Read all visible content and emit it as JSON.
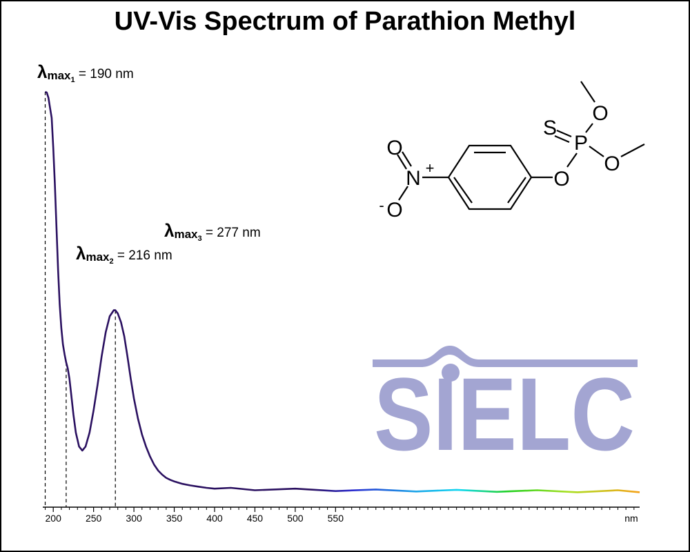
{
  "chart_data": {
    "type": "line",
    "title": "UV-Vis Spectrum of Parathion Methyl",
    "x_unit": "nm",
    "xlim": [
      187,
      927
    ],
    "ylim": [
      0,
      1.0
    ],
    "x_ticks": [
      200,
      250,
      300,
      350,
      400,
      450,
      500,
      550
    ],
    "grid": false,
    "series": [
      {
        "x": [
          190,
          192,
          194,
          196,
          198,
          200,
          202,
          204,
          206,
          208,
          210,
          212,
          214,
          216,
          218,
          220,
          222,
          225,
          228,
          232,
          236,
          240,
          245,
          250,
          255,
          260,
          265,
          270,
          275,
          277,
          280,
          284,
          288,
          292,
          296,
          300,
          305,
          310,
          315,
          320,
          325,
          330,
          335,
          340,
          345,
          350,
          360,
          370,
          380,
          390,
          400,
          420,
          450,
          500,
          550,
          600,
          650,
          700,
          750,
          800,
          850,
          900,
          927
        ],
        "y": [
          1.0,
          0.998,
          0.985,
          0.96,
          0.935,
          0.86,
          0.77,
          0.66,
          0.555,
          0.47,
          0.41,
          0.37,
          0.345,
          0.325,
          0.31,
          0.285,
          0.25,
          0.195,
          0.15,
          0.115,
          0.105,
          0.115,
          0.15,
          0.205,
          0.27,
          0.34,
          0.4,
          0.44,
          0.455,
          0.455,
          0.447,
          0.425,
          0.39,
          0.34,
          0.285,
          0.235,
          0.185,
          0.145,
          0.115,
          0.09,
          0.07,
          0.055,
          0.045,
          0.037,
          0.032,
          0.028,
          0.022,
          0.018,
          0.015,
          0.012,
          0.01,
          0.009,
          0.008,
          0.007,
          0.006,
          0.005,
          0.005,
          0.004,
          0.004,
          0.003,
          0.003,
          0.003,
          0.003
        ]
      }
    ],
    "annotations": [
      {
        "x": 190,
        "text": "190 nm",
        "index": "1"
      },
      {
        "x": 216,
        "text": "216 nm",
        "index": "2"
      },
      {
        "x": 277,
        "text": "277 nm",
        "index": "3"
      }
    ],
    "annotation_symbol": "λ",
    "annotation_sub": "max",
    "annotation_eq": "="
  },
  "structure": {
    "atoms": {
      "o_top": "O",
      "n_plus": "N",
      "plus": "+",
      "minus": "-",
      "o_bottom": "O",
      "s": "S",
      "p": "P",
      "o_link": "O",
      "o_up": "O",
      "o_right": "O"
    }
  },
  "logo": {
    "text": "SIELC",
    "color": "#a3a5d2"
  },
  "colors": {
    "spectrum_uv": "#2a1060",
    "spectrum_violet": "#3b1fa0",
    "frame": "#000000"
  }
}
